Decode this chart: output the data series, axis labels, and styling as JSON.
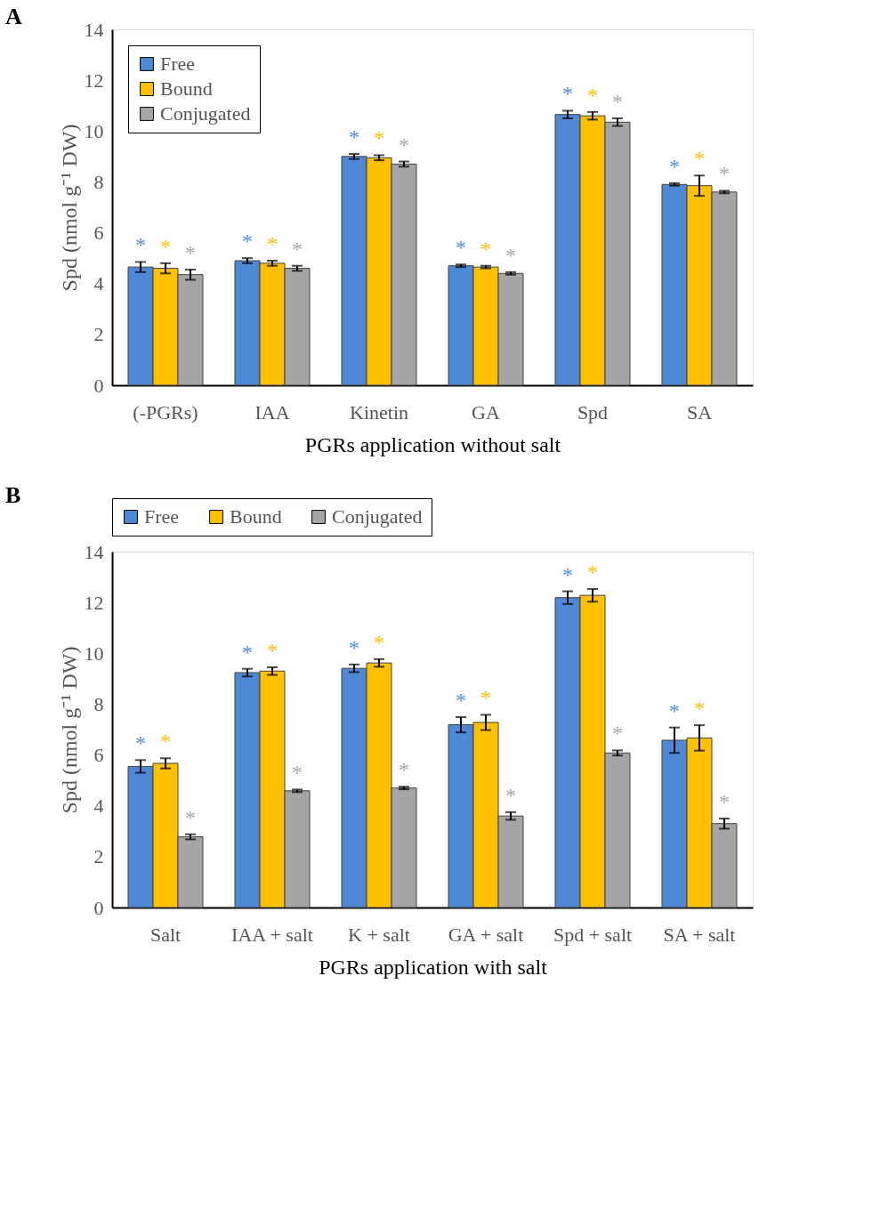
{
  "chart_data": [
    {
      "type": "bar",
      "title": "A",
      "xlabel": "PGRs application without salt",
      "ylabel": "Spd (nmol g⁻¹ DW)",
      "categories": [
        "(-PGRs)",
        "IAA",
        "Kinetin",
        "GA",
        "Spd",
        "SA"
      ],
      "ylim": [
        0,
        14
      ],
      "yticks": [
        0,
        2,
        4,
        6,
        8,
        10,
        12,
        14
      ],
      "grid": false,
      "legend": "top left",
      "series": [
        {
          "name": "Free",
          "color": "#4f89d6",
          "values": [
            4.65,
            4.9,
            9.0,
            4.7,
            10.65,
            7.9
          ],
          "errors": [
            0.2,
            0.1,
            0.1,
            0.05,
            0.15,
            0.05
          ],
          "value_labels": [
            "*",
            "*",
            "*",
            "*",
            "*",
            "*"
          ]
        },
        {
          "name": "Bound",
          "color": "#ffc000",
          "values": [
            4.6,
            4.8,
            8.95,
            4.65,
            10.6,
            7.85
          ],
          "errors": [
            0.2,
            0.1,
            0.1,
            0.05,
            0.15,
            0.4
          ],
          "value_labels": [
            "*",
            "*",
            "*",
            "*",
            "*",
            "*"
          ]
        },
        {
          "name": "Conjugated",
          "color": "#a5a5a5",
          "values": [
            4.35,
            4.6,
            8.7,
            4.4,
            10.35,
            7.6
          ],
          "errors": [
            0.2,
            0.1,
            0.1,
            0.05,
            0.15,
            0.05
          ],
          "value_labels": [
            "*",
            "*",
            "*",
            "*",
            "*",
            "*"
          ]
        }
      ]
    },
    {
      "type": "bar",
      "title": "B",
      "xlabel": "PGRs application with salt",
      "ylabel": "Spd (nmol g⁻¹ DW)",
      "categories": [
        "Salt",
        "IAA + salt",
        "K + salt",
        "GA + salt",
        "Spd + salt",
        "SA + salt"
      ],
      "ylim": [
        0,
        14
      ],
      "yticks": [
        0,
        2,
        4,
        6,
        8,
        10,
        12,
        14
      ],
      "grid": false,
      "legend": "top",
      "series": [
        {
          "name": "Free",
          "color": "#4f89d6",
          "values": [
            5.55,
            9.24,
            9.41,
            7.19,
            12.19,
            6.58
          ],
          "errors": [
            0.25,
            0.15,
            0.15,
            0.3,
            0.25,
            0.5
          ],
          "value_labels": [
            "*",
            "*",
            "*",
            "*",
            "*",
            "*"
          ]
        },
        {
          "name": "Bound",
          "color": "#ffc000",
          "values": [
            5.67,
            9.3,
            9.62,
            7.28,
            12.28,
            6.67
          ],
          "errors": [
            0.2,
            0.15,
            0.15,
            0.3,
            0.25,
            0.5
          ],
          "value_labels": [
            "*",
            "*",
            "*",
            "*",
            "*",
            "*"
          ]
        },
        {
          "name": "Conjugated",
          "color": "#a5a5a5",
          "values": [
            2.78,
            4.59,
            4.7,
            3.6,
            6.08,
            3.3
          ],
          "errors": [
            0.1,
            0.05,
            0.05,
            0.15,
            0.1,
            0.2
          ],
          "value_labels": [
            "*",
            "*",
            "*",
            "*",
            "*",
            "*"
          ]
        }
      ]
    }
  ]
}
